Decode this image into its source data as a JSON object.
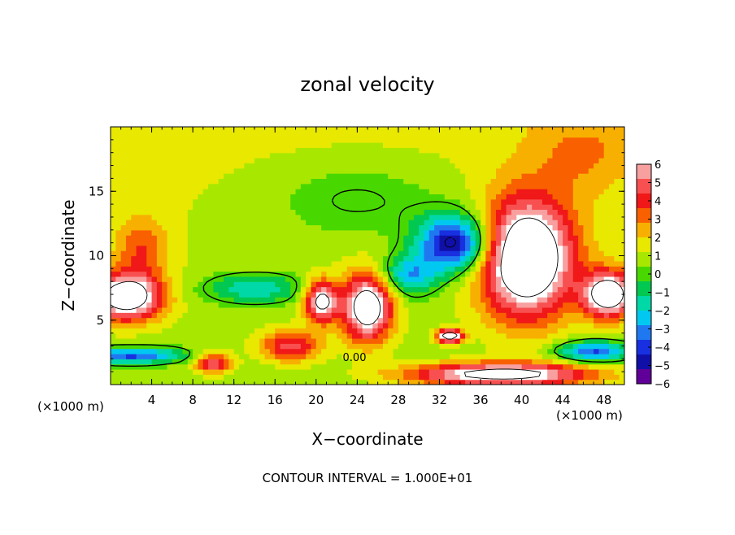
{
  "chart_data": {
    "type": "heatmap",
    "title": "zonal velocity",
    "xlabel": "X−coordinate",
    "ylabel": "Z−coordinate",
    "x_unit_left": "(×1000 m)",
    "x_unit_right": "(×1000 m)",
    "xlim": [
      0,
      50
    ],
    "ylim": [
      0,
      20
    ],
    "x_ticks": [
      4,
      8,
      12,
      16,
      20,
      24,
      28,
      32,
      36,
      40,
      44,
      48
    ],
    "y_ticks": [
      5,
      10,
      15
    ],
    "footer": "CONTOUR INTERVAL = 1.000E+01",
    "contour_label": "0.00",
    "colorbar": {
      "min": -6,
      "max": 6,
      "ticks": [
        6,
        5,
        4,
        3,
        2,
        1,
        0,
        -1,
        -2,
        -3,
        -4,
        -5,
        -6
      ],
      "colors": [
        "#f8a0a0",
        "#f85050",
        "#f01818",
        "#f86000",
        "#f8b000",
        "#e8e800",
        "#a8e800",
        "#48d800",
        "#00c850",
        "#00d8a8",
        "#00c8f0",
        "#2078f0",
        "#1830e0",
        "#1010a8",
        "#600098"
      ]
    },
    "anomalies": [
      {
        "x": 40.5,
        "z": 9.8,
        "rx": 4.5,
        "rz": 4.6,
        "amp": 8.5
      },
      {
        "x": 33.5,
        "z": 11.0,
        "rx": 3.5,
        "rz": 2.2,
        "amp": -6.5
      },
      {
        "x": 29.0,
        "z": 8.5,
        "rx": 2.8,
        "rz": 1.6,
        "amp": -3.5
      },
      {
        "x": 25.0,
        "z": 6.0,
        "rx": 2.4,
        "rz": 2.6,
        "amp": 7.5
      },
      {
        "x": 20.5,
        "z": 6.5,
        "rx": 1.6,
        "rz": 1.6,
        "amp": 6.5
      },
      {
        "x": 17.5,
        "z": 3.0,
        "rx": 3.0,
        "rz": 1.2,
        "amp": 4.0
      },
      {
        "x": 10.0,
        "z": 1.7,
        "rx": 1.8,
        "rz": 0.8,
        "amp": 4.5
      },
      {
        "x": 1.5,
        "z": 6.8,
        "rx": 3.5,
        "rz": 1.8,
        "amp": 7.5
      },
      {
        "x": 48.5,
        "z": 7.0,
        "rx": 2.5,
        "rz": 1.8,
        "amp": 7.5
      },
      {
        "x": 38.0,
        "z": 0.8,
        "rx": 9.0,
        "rz": 0.9,
        "amp": 7.0
      },
      {
        "x": 2.0,
        "z": 2.3,
        "rx": 5.0,
        "rz": 0.6,
        "amp": -4.5
      },
      {
        "x": 47.0,
        "z": 2.6,
        "rx": 3.5,
        "rz": 0.8,
        "amp": -4.5
      },
      {
        "x": 14.0,
        "z": 7.5,
        "rx": 5.0,
        "rz": 1.2,
        "amp": -2.8
      },
      {
        "x": 33.0,
        "z": 3.8,
        "rx": 1.2,
        "rz": 0.5,
        "amp": 8.0
      },
      {
        "x": 24.0,
        "z": 14.5,
        "rx": 10.0,
        "rz": 3.5,
        "amp": -1.4
      },
      {
        "x": 3.0,
        "z": 10.5,
        "rx": 2.5,
        "rz": 2.5,
        "amp": 2.5
      },
      {
        "x": 46.0,
        "z": 18.0,
        "rx": 5.0,
        "rz": 3.0,
        "amp": 1.5
      }
    ]
  }
}
